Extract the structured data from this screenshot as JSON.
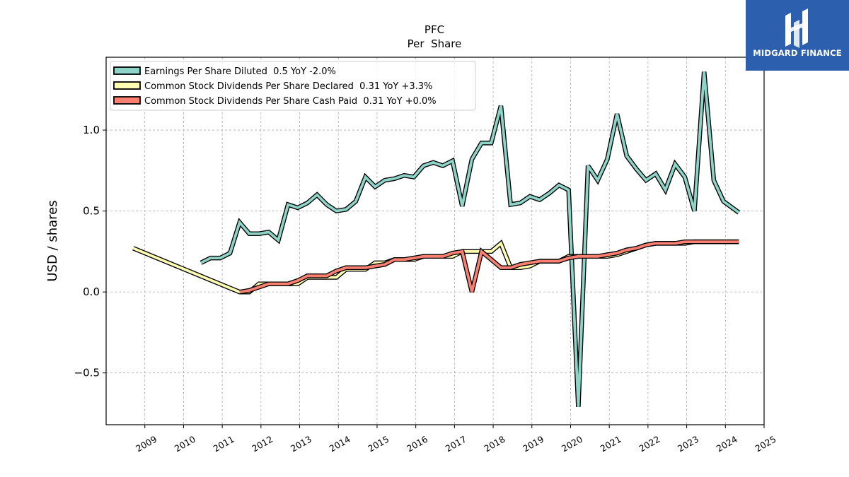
{
  "brand": {
    "name": "MIDGARD FINANCE",
    "logo_icon": "midgard-m-logo-icon",
    "background": "#2c5fad"
  },
  "chart_data": {
    "type": "line",
    "title": "PFC",
    "subtitle": "Per  Share",
    "xlabel": "",
    "ylabel": "USD / shares",
    "xlim": [
      2008.0,
      2025.0
    ],
    "ylim": [
      -0.82,
      1.45
    ],
    "x_ticks": [
      "2009",
      "2010",
      "2011",
      "2012",
      "2013",
      "2014",
      "2015",
      "2016",
      "2017",
      "2018",
      "2019",
      "2020",
      "2021",
      "2022",
      "2023",
      "2024",
      "2025"
    ],
    "y_ticks": [
      {
        "value": -0.5,
        "label": "−0.5"
      },
      {
        "value": 0.0,
        "label": "0.0"
      },
      {
        "value": 0.5,
        "label": "0.5"
      },
      {
        "value": 1.0,
        "label": "1.0"
      }
    ],
    "grid": true,
    "legend_position": "top-left",
    "series": [
      {
        "name": "Earnings Per Share Diluted",
        "legend_label": "Earnings Per Share Diluted  0.5 YoY -2.0%",
        "color": "#8dd3c7",
        "points": [
          [
            2010.45,
            0.18
          ],
          [
            2010.7,
            0.21
          ],
          [
            2010.95,
            0.21
          ],
          [
            2011.2,
            0.24
          ],
          [
            2011.45,
            0.43
          ],
          [
            2011.7,
            0.36
          ],
          [
            2011.95,
            0.36
          ],
          [
            2012.2,
            0.37
          ],
          [
            2012.45,
            0.32
          ],
          [
            2012.7,
            0.54
          ],
          [
            2012.95,
            0.52
          ],
          [
            2013.2,
            0.55
          ],
          [
            2013.45,
            0.6
          ],
          [
            2013.7,
            0.54
          ],
          [
            2013.95,
            0.5
          ],
          [
            2014.2,
            0.51
          ],
          [
            2014.45,
            0.56
          ],
          [
            2014.7,
            0.71
          ],
          [
            2014.95,
            0.65
          ],
          [
            2015.2,
            0.69
          ],
          [
            2015.45,
            0.7
          ],
          [
            2015.7,
            0.72
          ],
          [
            2015.95,
            0.71
          ],
          [
            2016.2,
            0.78
          ],
          [
            2016.45,
            0.8
          ],
          [
            2016.7,
            0.78
          ],
          [
            2016.95,
            0.81
          ],
          [
            2017.2,
            0.53
          ],
          [
            2017.45,
            0.82
          ],
          [
            2017.7,
            0.92
          ],
          [
            2017.95,
            0.92
          ],
          [
            2018.2,
            1.15
          ],
          [
            2018.45,
            0.54
          ],
          [
            2018.7,
            0.55
          ],
          [
            2018.95,
            0.59
          ],
          [
            2019.2,
            0.57
          ],
          [
            2019.45,
            0.61
          ],
          [
            2019.7,
            0.66
          ],
          [
            2019.95,
            0.63
          ],
          [
            2020.2,
            -0.71
          ],
          [
            2020.45,
            0.78
          ],
          [
            2020.7,
            0.69
          ],
          [
            2020.95,
            0.82
          ],
          [
            2021.2,
            1.1
          ],
          [
            2021.45,
            0.84
          ],
          [
            2021.7,
            0.76
          ],
          [
            2021.95,
            0.69
          ],
          [
            2022.2,
            0.73
          ],
          [
            2022.45,
            0.63
          ],
          [
            2022.7,
            0.79
          ],
          [
            2022.95,
            0.71
          ],
          [
            2023.2,
            0.5
          ],
          [
            2023.45,
            1.36
          ],
          [
            2023.7,
            0.69
          ],
          [
            2023.95,
            0.56
          ],
          [
            2024.35,
            0.49
          ]
        ]
      },
      {
        "name": "Common Stock Dividends Per Share Declared",
        "legend_label": "Common Stock Dividends Per Share Declared  0.31 YoY +3.3%",
        "color": "#ffffb3",
        "points": [
          [
            2008.7,
            0.27
          ],
          [
            2011.45,
            0.0
          ],
          [
            2011.7,
            0.0
          ],
          [
            2011.95,
            0.05
          ],
          [
            2012.2,
            0.05
          ],
          [
            2012.45,
            0.05
          ],
          [
            2012.7,
            0.05
          ],
          [
            2012.95,
            0.05
          ],
          [
            2013.2,
            0.09
          ],
          [
            2013.45,
            0.09
          ],
          [
            2013.7,
            0.09
          ],
          [
            2013.95,
            0.09
          ],
          [
            2014.2,
            0.14
          ],
          [
            2014.45,
            0.14
          ],
          [
            2014.7,
            0.14
          ],
          [
            2014.95,
            0.18
          ],
          [
            2015.2,
            0.18
          ],
          [
            2015.45,
            0.2
          ],
          [
            2015.7,
            0.2
          ],
          [
            2015.95,
            0.2
          ],
          [
            2016.2,
            0.22
          ],
          [
            2016.45,
            0.22
          ],
          [
            2016.7,
            0.22
          ],
          [
            2016.95,
            0.22
          ],
          [
            2017.2,
            0.25
          ],
          [
            2017.45,
            0.25
          ],
          [
            2017.7,
            0.25
          ],
          [
            2017.95,
            0.25
          ],
          [
            2018.2,
            0.3
          ],
          [
            2018.45,
            0.15
          ],
          [
            2018.7,
            0.15
          ],
          [
            2018.95,
            0.16
          ],
          [
            2019.2,
            0.19
          ],
          [
            2019.45,
            0.19
          ],
          [
            2019.7,
            0.19
          ],
          [
            2019.95,
            0.22
          ],
          [
            2020.2,
            0.22
          ],
          [
            2020.45,
            0.22
          ],
          [
            2020.7,
            0.22
          ],
          [
            2020.95,
            0.22
          ],
          [
            2021.2,
            0.23
          ],
          [
            2021.45,
            0.25
          ],
          [
            2021.7,
            0.27
          ],
          [
            2021.95,
            0.29
          ],
          [
            2022.2,
            0.3
          ],
          [
            2022.45,
            0.3
          ],
          [
            2022.7,
            0.3
          ],
          [
            2022.95,
            0.3
          ],
          [
            2023.2,
            0.31
          ],
          [
            2023.45,
            0.31
          ],
          [
            2023.7,
            0.31
          ],
          [
            2023.95,
            0.31
          ],
          [
            2024.35,
            0.31
          ]
        ]
      },
      {
        "name": "Common Stock Dividends Per Share Cash Paid",
        "legend_label": "Common Stock Dividends Per Share Cash Paid  0.31 YoY +0.0%",
        "color": "#fb8072",
        "points": [
          [
            2011.45,
            0.0
          ],
          [
            2011.7,
            0.01
          ],
          [
            2011.95,
            0.03
          ],
          [
            2012.2,
            0.05
          ],
          [
            2012.45,
            0.05
          ],
          [
            2012.7,
            0.05
          ],
          [
            2012.95,
            0.07
          ],
          [
            2013.2,
            0.1
          ],
          [
            2013.45,
            0.1
          ],
          [
            2013.7,
            0.1
          ],
          [
            2013.95,
            0.13
          ],
          [
            2014.2,
            0.15
          ],
          [
            2014.45,
            0.15
          ],
          [
            2014.7,
            0.15
          ],
          [
            2014.95,
            0.16
          ],
          [
            2015.2,
            0.17
          ],
          [
            2015.45,
            0.2
          ],
          [
            2015.7,
            0.2
          ],
          [
            2015.95,
            0.21
          ],
          [
            2016.2,
            0.22
          ],
          [
            2016.45,
            0.22
          ],
          [
            2016.7,
            0.22
          ],
          [
            2016.95,
            0.24
          ],
          [
            2017.2,
            0.25
          ],
          [
            2017.45,
            0.0
          ],
          [
            2017.7,
            0.25
          ],
          [
            2017.95,
            0.2
          ],
          [
            2018.2,
            0.15
          ],
          [
            2018.45,
            0.15
          ],
          [
            2018.7,
            0.17
          ],
          [
            2018.95,
            0.18
          ],
          [
            2019.2,
            0.19
          ],
          [
            2019.45,
            0.19
          ],
          [
            2019.7,
            0.19
          ],
          [
            2019.95,
            0.21
          ],
          [
            2020.2,
            0.22
          ],
          [
            2020.45,
            0.22
          ],
          [
            2020.7,
            0.22
          ],
          [
            2020.95,
            0.23
          ],
          [
            2021.2,
            0.24
          ],
          [
            2021.45,
            0.26
          ],
          [
            2021.7,
            0.27
          ],
          [
            2021.95,
            0.29
          ],
          [
            2022.2,
            0.3
          ],
          [
            2022.45,
            0.3
          ],
          [
            2022.7,
            0.3
          ],
          [
            2022.95,
            0.31
          ],
          [
            2023.2,
            0.31
          ],
          [
            2023.45,
            0.31
          ],
          [
            2023.7,
            0.31
          ],
          [
            2023.95,
            0.31
          ],
          [
            2024.35,
            0.31
          ]
        ]
      }
    ]
  }
}
